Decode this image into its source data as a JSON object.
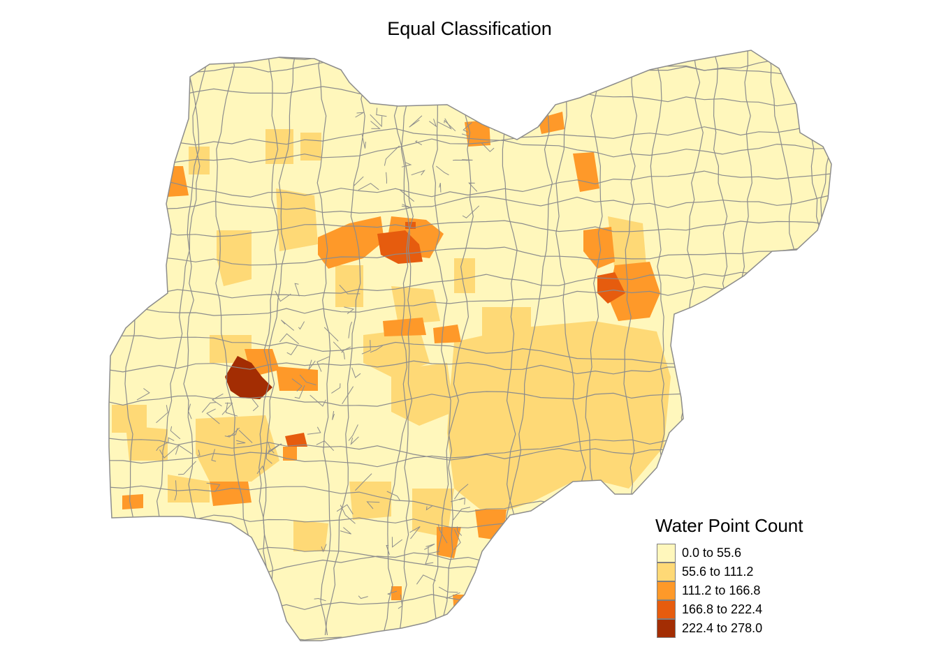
{
  "title": "Equal Classification",
  "legend": {
    "title": "Water Point Count",
    "classes": [
      {
        "label": "0.0 to 55.6",
        "color": "#FFF7BC"
      },
      {
        "label": "55.6 to 111.2",
        "color": "#FED976"
      },
      {
        "label": "111.2 to 166.8",
        "color": "#FE9929"
      },
      {
        "label": "166.8 to 222.4",
        "color": "#E65C0E"
      },
      {
        "label": "222.4 to 278.0",
        "color": "#A32D03"
      }
    ]
  },
  "colors": {
    "border": "#8c8c8c",
    "background": "#ffffff"
  }
}
